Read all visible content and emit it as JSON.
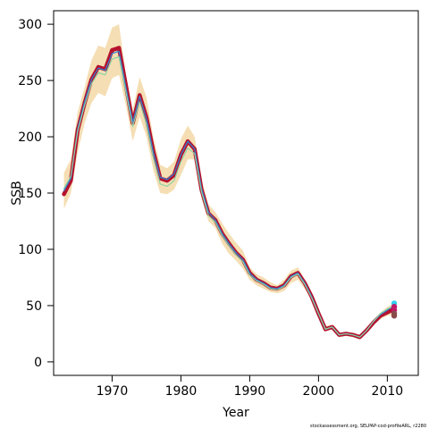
{
  "chart_data": {
    "type": "line",
    "title": "",
    "xlabel": "Year",
    "ylabel": "SSB",
    "xlim": [
      1961.5,
      2014.5
    ],
    "ylim": [
      -12,
      312
    ],
    "x_ticks": [
      1970,
      1980,
      1990,
      2000,
      2010
    ],
    "y_ticks": [
      0,
      50,
      100,
      150,
      200,
      250,
      300
    ],
    "grid": false,
    "legend": "none",
    "credit": "stockassessment.org, SELPAP-cod-profileARL, r2280",
    "colors": {
      "band": "#f5deb3",
      "main_line": "#b5122e",
      "alt_line_1": "#2f7fd0",
      "alt_line_2": "#8fd3a5",
      "end_dot_1": "#2fd0f0",
      "end_dot_2": "#c01a6a",
      "end_dot_3": "#8b4a4a"
    },
    "x": [
      1963,
      1964,
      1965,
      1966,
      1967,
      1968,
      1969,
      1970,
      1971,
      1972,
      1973,
      1974,
      1975,
      1976,
      1977,
      1978,
      1979,
      1980,
      1981,
      1982,
      1983,
      1984,
      1985,
      1986,
      1987,
      1988,
      1989,
      1990,
      1991,
      1992,
      1993,
      1994,
      1995,
      1996,
      1997,
      1998,
      1999,
      2000,
      2001,
      2002,
      2003,
      2004,
      2005,
      2006,
      2007,
      2008,
      2009,
      2010,
      2011
    ],
    "band_upper": [
      168,
      180,
      222,
      244,
      268,
      281,
      279,
      297,
      300,
      255,
      224,
      253,
      235,
      199,
      175,
      172,
      178,
      198,
      210,
      200,
      162,
      140,
      133,
      123,
      114,
      106,
      99,
      84,
      78,
      75,
      71,
      68,
      73,
      81,
      84,
      73,
      61,
      45,
      32,
      33,
      26,
      26,
      25,
      23,
      30,
      37,
      44,
      49,
      52
    ],
    "band_lower": [
      136,
      150,
      186,
      212,
      230,
      239,
      236,
      252,
      255,
      228,
      196,
      218,
      200,
      170,
      150,
      149,
      153,
      166,
      180,
      180,
      145,
      125,
      119,
      105,
      96,
      90,
      83,
      73,
      68,
      65,
      62,
      61,
      63,
      70,
      73,
      65,
      55,
      41,
      27,
      29,
      22,
      23,
      22,
      20,
      27,
      33,
      38,
      41,
      42
    ],
    "series": [
      {
        "name": "",
        "values": [
          149,
          161,
          206,
          230,
          251,
          262,
          260,
          277,
          279,
          246,
          212,
          237,
          217,
          187,
          163,
          161,
          166,
          184,
          196,
          189,
          153,
          132,
          126,
          114,
          105,
          97,
          91,
          79,
          73,
          70,
          66,
          65,
          68,
          76,
          79,
          70,
          58,
          43,
          29,
          31,
          24,
          25,
          24,
          22,
          28,
          35,
          41,
          44,
          47
        ]
      },
      {
        "name": "",
        "values": [
          152,
          163,
          207,
          231,
          251,
          261,
          259,
          274,
          276,
          244,
          213,
          236,
          216,
          186,
          164,
          162,
          167,
          184,
          196,
          189,
          154,
          133,
          126,
          114,
          105,
          97,
          91,
          79,
          73,
          70,
          66,
          65,
          68,
          76,
          79,
          70,
          58,
          43,
          29,
          31,
          24,
          25,
          24,
          22,
          28,
          36,
          42,
          46,
          50
        ]
      },
      {
        "name": "",
        "values": [
          154,
          165,
          205,
          228,
          247,
          257,
          255,
          269,
          271,
          240,
          209,
          231,
          211,
          181,
          158,
          156,
          161,
          178,
          190,
          185,
          151,
          130,
          124,
          112,
          103,
          95,
          89,
          77,
          72,
          69,
          65,
          64,
          67,
          75,
          78,
          69,
          57,
          43,
          29,
          31,
          24,
          25,
          24,
          22,
          28,
          36,
          43,
          47,
          50
        ]
      }
    ],
    "end_points": [
      52,
      49,
      46,
      43,
      41
    ]
  }
}
